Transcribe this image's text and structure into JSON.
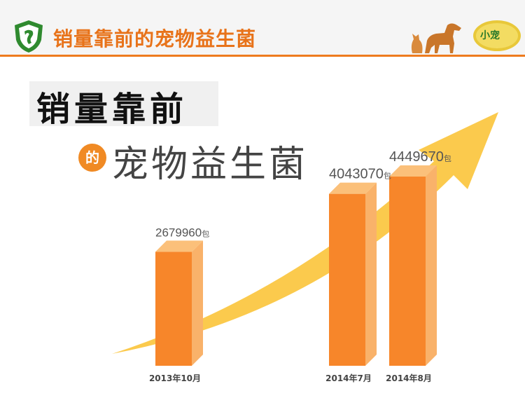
{
  "header": {
    "title": "销量靠前的宠物益生菌",
    "brand_text": "小宠"
  },
  "headline": {
    "main": "销量靠前",
    "connector": "的",
    "sub": "宠物益生菌"
  },
  "colors": {
    "accent": "#ee7b1e",
    "bar_front": "#f7862a",
    "bar_side": "#f9b26a",
    "bar_top": "#fbc07a",
    "arrow": "#fbc43a",
    "logo_green": "#2f8a2f"
  },
  "chart_data": {
    "type": "bar",
    "categories": [
      "2013年10月",
      "2014年7月",
      "2014年8月"
    ],
    "values": [
      2679960,
      4043070,
      4449670
    ],
    "value_labels": [
      "2679960",
      "4043070",
      "4449670"
    ],
    "unit": "包",
    "title": "",
    "xlabel": "",
    "ylabel": "",
    "grid": false,
    "legend": "none",
    "trend_arrow": true
  }
}
